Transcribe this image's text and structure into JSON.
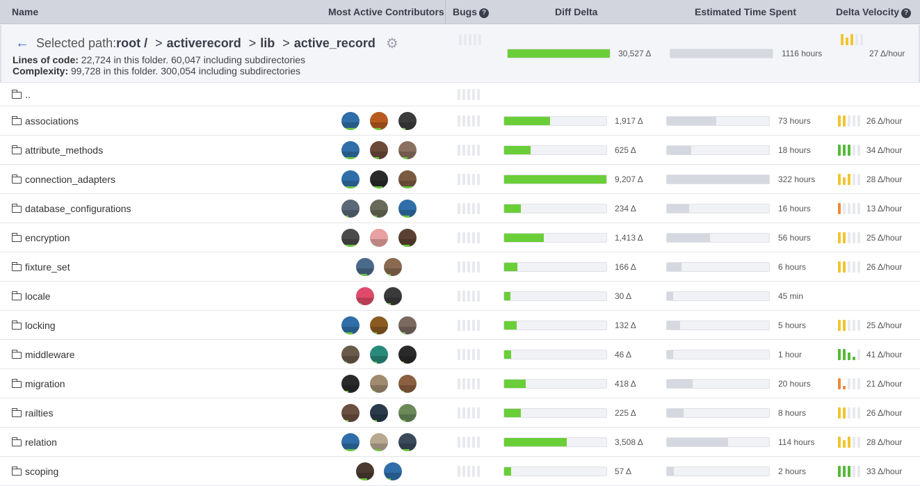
{
  "header": {
    "name": "Name",
    "contributors": "Most Active Contributors",
    "bugs": "Bugs",
    "diff_delta": "Diff Delta",
    "time_spent": "Estimated Time Spent",
    "velocity": "Delta Velocity",
    "help_glyph": "?"
  },
  "selected": {
    "back_glyph": "←",
    "prefix": "Selected path:",
    "root": "root /",
    "separator": ">",
    "segments": [
      "activerecord",
      "lib",
      "active_record"
    ],
    "loc_label": "Lines of code:",
    "loc_text": "22,724 in this folder. 60,047 including subdirectories",
    "complexity_label": "Complexity:",
    "complexity_text": "99,728 in this folder. 300,054 including subdirectories",
    "diff_fraction": 1.0,
    "diff_value": "30,527 Δ",
    "time_fraction": 1.0,
    "time_value": "1116 hours",
    "velocity_value": "27 Δ/hour",
    "velocity_bars": [
      3,
      2,
      3,
      0,
      0
    ],
    "velocity_color": "#f2c530"
  },
  "parent_row": {
    "name": ".."
  },
  "rows": [
    {
      "name": "associations",
      "avatars": [
        "#2f6ea8",
        "#b85a1e",
        "#3c3c3c"
      ],
      "avatar_bars": [
        1,
        0.6,
        0.4
      ],
      "diff_fraction": 0.45,
      "diff_value": "1,917 Δ",
      "time_fraction": 0.48,
      "time_value": "73 hours",
      "velocity_value": "26 Δ/hour",
      "velocity_bars": [
        3,
        3,
        0,
        0,
        0
      ],
      "velocity_color": "#f2c530"
    },
    {
      "name": "attribute_methods",
      "avatars": [
        "#2f6ea8",
        "#6b4a3a",
        "#8a7060"
      ],
      "avatar_bars": [
        1,
        0.5,
        0.5
      ],
      "diff_fraction": 0.26,
      "diff_value": "625 Δ",
      "time_fraction": 0.24,
      "time_value": "18 hours",
      "velocity_value": "34 Δ/hour",
      "velocity_bars": [
        3,
        3,
        3,
        0,
        0
      ],
      "velocity_color": "#56b93a"
    },
    {
      "name": "connection_adapters",
      "avatars": [
        "#2f6ea8",
        "#2a2a2a",
        "#7a5a40"
      ],
      "avatar_bars": [
        1,
        0.7,
        1
      ],
      "diff_fraction": 1.0,
      "diff_value": "9,207 Δ",
      "time_fraction": 1.0,
      "time_value": "322 hours",
      "velocity_value": "28 Δ/hour",
      "velocity_bars": [
        3,
        2,
        3,
        0,
        0
      ],
      "velocity_color": "#f2c530"
    },
    {
      "name": "database_configurations",
      "avatars": [
        "#5a6878",
        "#6a6a5a",
        "#2f6ea8"
      ],
      "avatar_bars": [
        0.4,
        0.4,
        0.6
      ],
      "diff_fraction": 0.16,
      "diff_value": "234 Δ",
      "time_fraction": 0.22,
      "time_value": "16 hours",
      "velocity_value": "13 Δ/hour",
      "velocity_bars": [
        3,
        0,
        0,
        0,
        0
      ],
      "velocity_color": "#f08a3a"
    },
    {
      "name": "encryption",
      "avatars": [
        "#4a4a4a",
        "#e8a0a0",
        "#5a4030"
      ],
      "avatar_bars": [
        1,
        0.3,
        0.6
      ],
      "diff_fraction": 0.39,
      "diff_value": "1,413 Δ",
      "time_fraction": 0.42,
      "time_value": "56 hours",
      "velocity_value": "25 Δ/hour",
      "velocity_bars": [
        3,
        3,
        0,
        0,
        0
      ],
      "velocity_color": "#f2c530"
    },
    {
      "name": "fixture_set",
      "avatars": [
        "#4a6a8a",
        "#8a6a50"
      ],
      "avatar_bars": [
        0.6,
        0.4
      ],
      "diff_fraction": 0.13,
      "diff_value": "166 Δ",
      "time_fraction": 0.14,
      "time_value": "6 hours",
      "velocity_value": "26 Δ/hour",
      "velocity_bars": [
        3,
        3,
        0,
        0,
        0
      ],
      "velocity_color": "#f2c530"
    },
    {
      "name": "locale",
      "avatars": [
        "#e04a6a",
        "#3a3a3a"
      ],
      "avatar_bars": [
        0.3,
        0.4
      ],
      "diff_fraction": 0.06,
      "diff_value": "30 Δ",
      "time_fraction": 0.06,
      "time_value": "45 min",
      "velocity_value": "",
      "velocity_bars": [],
      "velocity_color": "#f2c530"
    },
    {
      "name": "locking",
      "avatars": [
        "#2f6ea8",
        "#8a5a20",
        "#7a6a60"
      ],
      "avatar_bars": [
        0.6,
        0.4,
        0.4
      ],
      "diff_fraction": 0.12,
      "diff_value": "132 Δ",
      "time_fraction": 0.13,
      "time_value": "5 hours",
      "velocity_value": "25 Δ/hour",
      "velocity_bars": [
        3,
        3,
        0,
        0,
        0
      ],
      "velocity_color": "#f2c530"
    },
    {
      "name": "middleware",
      "avatars": [
        "#6a5a4a",
        "#2a8a7a",
        "#2a2a2a"
      ],
      "avatar_bars": [
        0.3,
        0.4,
        0.3
      ],
      "diff_fraction": 0.07,
      "diff_value": "46 Δ",
      "time_fraction": 0.06,
      "time_value": "1 hour",
      "velocity_value": "41 Δ/hour",
      "velocity_bars": [
        3,
        3,
        2,
        1,
        0
      ],
      "velocity_color": "#56b93a"
    },
    {
      "name": "migration",
      "avatars": [
        "#2a2a2a",
        "#a08a70",
        "#8a6040"
      ],
      "avatar_bars": [
        0.4,
        0.3,
        0.3
      ],
      "diff_fraction": 0.21,
      "diff_value": "418 Δ",
      "time_fraction": 0.25,
      "time_value": "20 hours",
      "velocity_value": "21 Δ/hour",
      "velocity_bars": [
        3,
        1,
        0,
        0,
        0
      ],
      "velocity_color": "#f08a3a"
    },
    {
      "name": "railties",
      "avatars": [
        "#6a5040",
        "#2a3a4a",
        "#6a8a5a"
      ],
      "avatar_bars": [
        0.4,
        0.4,
        0.4
      ],
      "diff_fraction": 0.16,
      "diff_value": "225 Δ",
      "time_fraction": 0.16,
      "time_value": "8 hours",
      "velocity_value": "26 Δ/hour",
      "velocity_bars": [
        3,
        3,
        0,
        0,
        0
      ],
      "velocity_color": "#f2c530"
    },
    {
      "name": "relation",
      "avatars": [
        "#2f6ea8",
        "#b8a890",
        "#3a4a5a"
      ],
      "avatar_bars": [
        1,
        0.6,
        0.6
      ],
      "diff_fraction": 0.61,
      "diff_value": "3,508 Δ",
      "time_fraction": 0.6,
      "time_value": "114 hours",
      "velocity_value": "28 Δ/hour",
      "velocity_bars": [
        3,
        2,
        3,
        0,
        0
      ],
      "velocity_color": "#f2c530"
    },
    {
      "name": "scoping",
      "avatars": [
        "#4a3a30",
        "#2f6ea8"
      ],
      "avatar_bars": [
        0.6,
        0.4
      ],
      "diff_fraction": 0.07,
      "diff_value": "57 Δ",
      "time_fraction": 0.07,
      "time_value": "2 hours",
      "velocity_value": "33 Δ/hour",
      "velocity_bars": [
        3,
        3,
        3,
        0,
        0
      ],
      "velocity_color": "#56b93a"
    }
  ]
}
